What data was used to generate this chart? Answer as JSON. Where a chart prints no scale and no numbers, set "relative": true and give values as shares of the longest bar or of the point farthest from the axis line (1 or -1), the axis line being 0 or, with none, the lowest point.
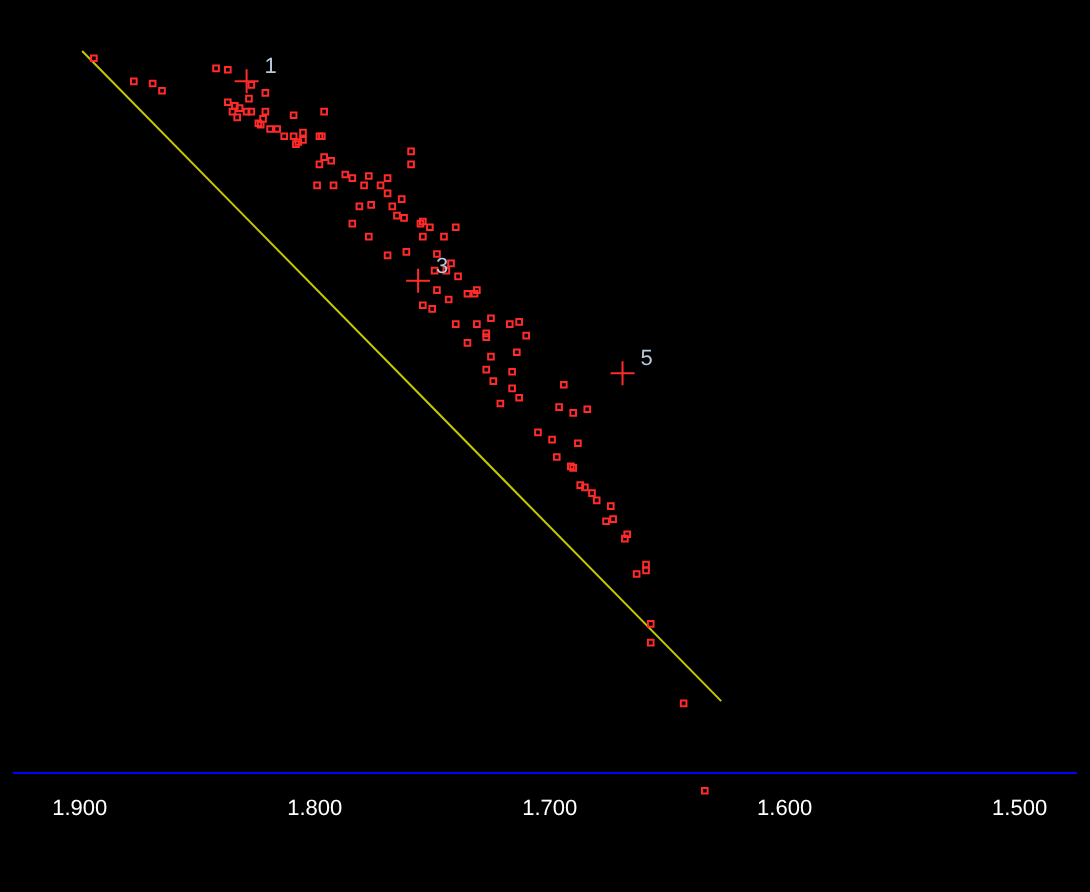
{
  "chart_data": {
    "type": "scatter",
    "relative": true,
    "xlim": [
      1.928,
      1.476
    ],
    "xticks": [
      {
        "value": 1.9,
        "label": "1.900"
      },
      {
        "value": 1.8,
        "label": "1.800"
      },
      {
        "value": 1.7,
        "label": "1.700"
      },
      {
        "value": 1.6,
        "label": "1.600"
      },
      {
        "value": 1.5,
        "label": "1.500"
      }
    ],
    "series": [
      {
        "color": "#ff2a2a",
        "marker": "square",
        "x": [
          1.894,
          1.877,
          1.869,
          1.865,
          1.842,
          1.837,
          1.827,
          1.821,
          1.828,
          1.837,
          1.834,
          1.832,
          1.835,
          1.829,
          1.827,
          1.821,
          1.833,
          1.822,
          1.824,
          1.823,
          1.819,
          1.816,
          1.809,
          1.796,
          1.813,
          1.809,
          1.805,
          1.805,
          1.808,
          1.807,
          1.798,
          1.797,
          1.798,
          1.796,
          1.793,
          1.759,
          1.759,
          1.799,
          1.792,
          1.787,
          1.784,
          1.777,
          1.769,
          1.779,
          1.772,
          1.769,
          1.781,
          1.776,
          1.767,
          1.763,
          1.765,
          1.762,
          1.784,
          1.755,
          1.754,
          1.751,
          1.777,
          1.761,
          1.754,
          1.748,
          1.769,
          1.748,
          1.74,
          1.745,
          1.742,
          1.739,
          1.744,
          1.749,
          1.743,
          1.754,
          1.75,
          1.735,
          1.732,
          1.731,
          1.725,
          1.74,
          1.731,
          1.727,
          1.727,
          1.735,
          1.717,
          1.713,
          1.71,
          1.714,
          1.725,
          1.727,
          1.716,
          1.724,
          1.716,
          1.713,
          1.721,
          1.694,
          1.696,
          1.69,
          1.684,
          1.705,
          1.699,
          1.688,
          1.697,
          1.691,
          1.69,
          1.687,
          1.685,
          1.682,
          1.68,
          1.674,
          1.673,
          1.676,
          1.667,
          1.668,
          1.659,
          1.659,
          1.663,
          1.657,
          1.657,
          1.643,
          1.634
        ],
        "values": [
          0.99,
          0.958,
          0.955,
          0.945,
          0.976,
          0.974,
          0.953,
          0.942,
          0.934,
          0.929,
          0.924,
          0.921,
          0.916,
          0.916,
          0.916,
          0.916,
          0.908,
          0.906,
          0.9,
          0.898,
          0.892,
          0.892,
          0.911,
          0.916,
          0.882,
          0.882,
          0.887,
          0.877,
          0.871,
          0.874,
          0.882,
          0.882,
          0.843,
          0.853,
          0.848,
          0.861,
          0.843,
          0.814,
          0.814,
          0.829,
          0.824,
          0.827,
          0.824,
          0.814,
          0.814,
          0.803,
          0.785,
          0.787,
          0.785,
          0.795,
          0.772,
          0.769,
          0.761,
          0.761,
          0.764,
          0.756,
          0.743,
          0.722,
          0.743,
          0.719,
          0.717,
          0.669,
          0.756,
          0.743,
          0.706,
          0.688,
          0.696,
          0.696,
          0.656,
          0.648,
          0.643,
          0.664,
          0.664,
          0.669,
          0.63,
          0.622,
          0.622,
          0.609,
          0.604,
          0.596,
          0.622,
          0.625,
          0.606,
          0.583,
          0.577,
          0.559,
          0.556,
          0.543,
          0.533,
          0.52,
          0.512,
          0.538,
          0.507,
          0.499,
          0.504,
          0.472,
          0.462,
          0.457,
          0.438,
          0.425,
          0.423,
          0.399,
          0.396,
          0.388,
          0.378,
          0.37,
          0.352,
          0.349,
          0.331,
          0.325,
          0.289,
          0.281,
          0.276,
          0.207,
          0.181,
          0.097,
          -0.024
        ]
      },
      {
        "color": "#ff2a2a",
        "marker": "cross",
        "x": [
          1.829,
          1.756,
          1.669
        ],
        "values": [
          0.958,
          0.682,
          0.554
        ]
      },
      {
        "type": "line",
        "color": "#c8c800",
        "marker": "none",
        "line_style": "solid",
        "x": [
          1.899,
          1.627
        ],
        "values": [
          1.0,
          0.1
        ]
      }
    ],
    "annotations": [
      {
        "text": "1",
        "x": 1.829,
        "y": 0.958
      },
      {
        "text": "3",
        "x": 1.756,
        "y": 0.682
      },
      {
        "text": "5",
        "x": 1.669,
        "y": 0.554
      }
    ]
  }
}
